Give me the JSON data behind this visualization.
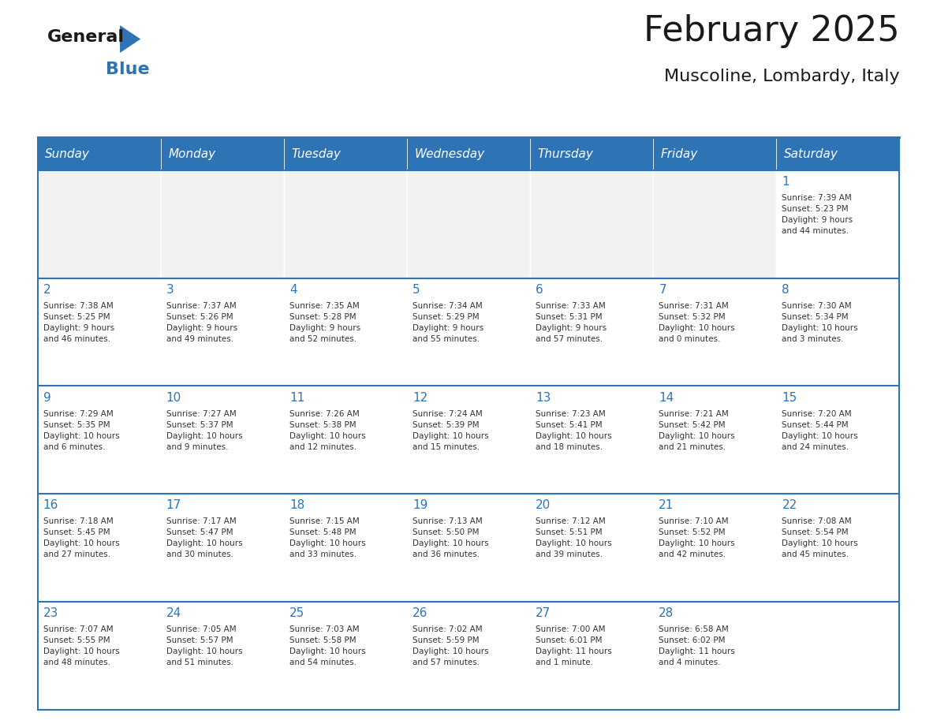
{
  "title": "February 2025",
  "subtitle": "Muscoline, Lombardy, Italy",
  "days_of_week": [
    "Sunday",
    "Monday",
    "Tuesday",
    "Wednesday",
    "Thursday",
    "Friday",
    "Saturday"
  ],
  "header_bg": "#2E74B5",
  "header_text_color": "#FFFFFF",
  "cell_bg_light": "#FFFFFF",
  "cell_bg_dark": "#F2F2F2",
  "border_color": "#2E74B5",
  "day_number_color": "#2E74B5",
  "cell_text_color": "#333333",
  "title_color": "#1a1a1a",
  "calendar_data": [
    [
      {
        "day": null,
        "info": null
      },
      {
        "day": null,
        "info": null
      },
      {
        "day": null,
        "info": null
      },
      {
        "day": null,
        "info": null
      },
      {
        "day": null,
        "info": null
      },
      {
        "day": null,
        "info": null
      },
      {
        "day": 1,
        "info": "Sunrise: 7:39 AM\nSunset: 5:23 PM\nDaylight: 9 hours\nand 44 minutes."
      }
    ],
    [
      {
        "day": 2,
        "info": "Sunrise: 7:38 AM\nSunset: 5:25 PM\nDaylight: 9 hours\nand 46 minutes."
      },
      {
        "day": 3,
        "info": "Sunrise: 7:37 AM\nSunset: 5:26 PM\nDaylight: 9 hours\nand 49 minutes."
      },
      {
        "day": 4,
        "info": "Sunrise: 7:35 AM\nSunset: 5:28 PM\nDaylight: 9 hours\nand 52 minutes."
      },
      {
        "day": 5,
        "info": "Sunrise: 7:34 AM\nSunset: 5:29 PM\nDaylight: 9 hours\nand 55 minutes."
      },
      {
        "day": 6,
        "info": "Sunrise: 7:33 AM\nSunset: 5:31 PM\nDaylight: 9 hours\nand 57 minutes."
      },
      {
        "day": 7,
        "info": "Sunrise: 7:31 AM\nSunset: 5:32 PM\nDaylight: 10 hours\nand 0 minutes."
      },
      {
        "day": 8,
        "info": "Sunrise: 7:30 AM\nSunset: 5:34 PM\nDaylight: 10 hours\nand 3 minutes."
      }
    ],
    [
      {
        "day": 9,
        "info": "Sunrise: 7:29 AM\nSunset: 5:35 PM\nDaylight: 10 hours\nand 6 minutes."
      },
      {
        "day": 10,
        "info": "Sunrise: 7:27 AM\nSunset: 5:37 PM\nDaylight: 10 hours\nand 9 minutes."
      },
      {
        "day": 11,
        "info": "Sunrise: 7:26 AM\nSunset: 5:38 PM\nDaylight: 10 hours\nand 12 minutes."
      },
      {
        "day": 12,
        "info": "Sunrise: 7:24 AM\nSunset: 5:39 PM\nDaylight: 10 hours\nand 15 minutes."
      },
      {
        "day": 13,
        "info": "Sunrise: 7:23 AM\nSunset: 5:41 PM\nDaylight: 10 hours\nand 18 minutes."
      },
      {
        "day": 14,
        "info": "Sunrise: 7:21 AM\nSunset: 5:42 PM\nDaylight: 10 hours\nand 21 minutes."
      },
      {
        "day": 15,
        "info": "Sunrise: 7:20 AM\nSunset: 5:44 PM\nDaylight: 10 hours\nand 24 minutes."
      }
    ],
    [
      {
        "day": 16,
        "info": "Sunrise: 7:18 AM\nSunset: 5:45 PM\nDaylight: 10 hours\nand 27 minutes."
      },
      {
        "day": 17,
        "info": "Sunrise: 7:17 AM\nSunset: 5:47 PM\nDaylight: 10 hours\nand 30 minutes."
      },
      {
        "day": 18,
        "info": "Sunrise: 7:15 AM\nSunset: 5:48 PM\nDaylight: 10 hours\nand 33 minutes."
      },
      {
        "day": 19,
        "info": "Sunrise: 7:13 AM\nSunset: 5:50 PM\nDaylight: 10 hours\nand 36 minutes."
      },
      {
        "day": 20,
        "info": "Sunrise: 7:12 AM\nSunset: 5:51 PM\nDaylight: 10 hours\nand 39 minutes."
      },
      {
        "day": 21,
        "info": "Sunrise: 7:10 AM\nSunset: 5:52 PM\nDaylight: 10 hours\nand 42 minutes."
      },
      {
        "day": 22,
        "info": "Sunrise: 7:08 AM\nSunset: 5:54 PM\nDaylight: 10 hours\nand 45 minutes."
      }
    ],
    [
      {
        "day": 23,
        "info": "Sunrise: 7:07 AM\nSunset: 5:55 PM\nDaylight: 10 hours\nand 48 minutes."
      },
      {
        "day": 24,
        "info": "Sunrise: 7:05 AM\nSunset: 5:57 PM\nDaylight: 10 hours\nand 51 minutes."
      },
      {
        "day": 25,
        "info": "Sunrise: 7:03 AM\nSunset: 5:58 PM\nDaylight: 10 hours\nand 54 minutes."
      },
      {
        "day": 26,
        "info": "Sunrise: 7:02 AM\nSunset: 5:59 PM\nDaylight: 10 hours\nand 57 minutes."
      },
      {
        "day": 27,
        "info": "Sunrise: 7:00 AM\nSunset: 6:01 PM\nDaylight: 11 hours\nand 1 minute."
      },
      {
        "day": 28,
        "info": "Sunrise: 6:58 AM\nSunset: 6:02 PM\nDaylight: 11 hours\nand 4 minutes."
      },
      {
        "day": null,
        "info": null
      }
    ]
  ]
}
